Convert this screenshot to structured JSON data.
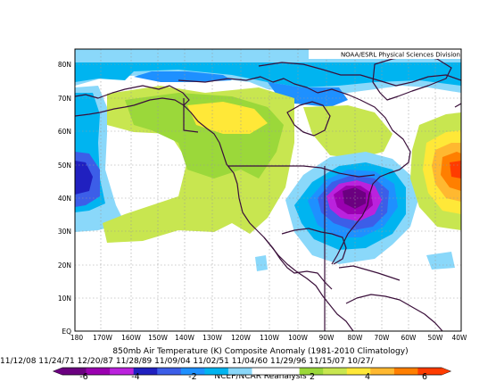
{
  "map": {
    "credit": "NOAA/ESRL Physical Sciences Division",
    "lat_labels": [
      "80N",
      "70N",
      "60N",
      "50N",
      "40N",
      "30N",
      "20N",
      "10N",
      "EQ"
    ],
    "lon_labels": [
      "180",
      "170W",
      "160W",
      "150W",
      "140W",
      "130W",
      "120W",
      "110W",
      "100W",
      "90W",
      "80W",
      "70W",
      "60W",
      "50W",
      "40W"
    ],
    "title": "850mb Air Temperature (K) Composite Anomaly (1981-2010 Climatology)",
    "dates": "11/12/08 11/24/71 12/20/87 11/28/89 11/09/04 11/02/51 11/04/60 11/29/96 11/15/07 10/27/",
    "source": "NCEP/NCAR Reanalysis",
    "colorbar": {
      "labels": [
        "-6",
        "-4",
        "-2",
        "2",
        "4",
        "6"
      ],
      "colors": [
        "#6b0080",
        "#9a00b0",
        "#bb22dd",
        "#2020c0",
        "#3c5ee8",
        "#1e90ff",
        "#00b4f0",
        "#8ad8fa",
        "#ffffff",
        "#ffffff",
        "#9bd83a",
        "#c8e650",
        "#ffe838",
        "#ffb830",
        "#ff7f00",
        "#ff3c00"
      ]
    },
    "colors": {
      "coast": "#3a0f3a",
      "grid": "#9a9a9a"
    }
  }
}
